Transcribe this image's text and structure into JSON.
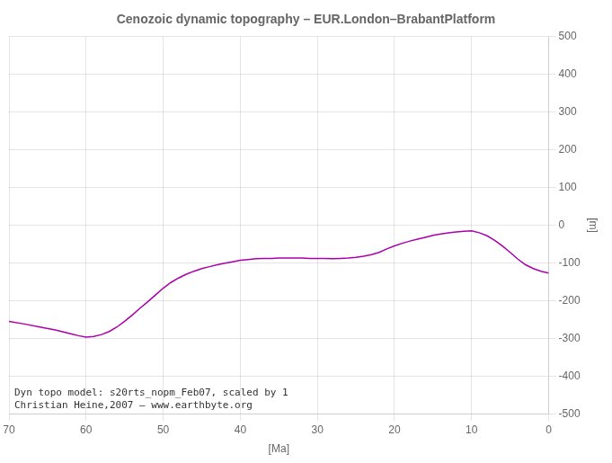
{
  "chart_data": {
    "type": "line",
    "title": "Cenozoic dynamic topography – EUR.London–BrabantPlatform",
    "xlabel": "[Ma]",
    "ylabel": "[m]",
    "annotations": [
      "Dyn topo model: s20rts_nopm_Feb07, scaled by 1",
      "Christian Heine,2007 – www.earthbyte.org"
    ],
    "x": [
      70,
      68,
      66,
      64,
      62,
      61,
      60,
      59,
      58,
      57,
      56,
      55,
      54,
      53,
      52,
      51,
      50,
      49,
      48,
      47,
      46,
      45,
      44,
      43,
      42,
      41,
      40,
      39,
      38,
      37,
      36,
      35,
      34,
      33,
      32,
      31,
      30,
      29,
      28,
      27,
      26,
      25,
      24,
      23,
      22,
      21,
      20,
      19,
      18,
      17,
      16,
      15,
      14,
      13,
      12,
      11,
      10,
      9,
      8,
      7,
      6,
      5,
      4,
      3,
      2,
      1,
      0
    ],
    "values": [
      -255,
      -262,
      -270,
      -278,
      -288,
      -293,
      -297,
      -295,
      -290,
      -282,
      -270,
      -255,
      -238,
      -220,
      -203,
      -185,
      -167,
      -152,
      -140,
      -130,
      -122,
      -115,
      -110,
      -105,
      -101,
      -97,
      -93,
      -91,
      -89,
      -88,
      -88,
      -87,
      -87,
      -87,
      -87,
      -88,
      -88,
      -88,
      -89,
      -88,
      -87,
      -85,
      -82,
      -78,
      -72,
      -63,
      -55,
      -48,
      -42,
      -37,
      -32,
      -27,
      -23,
      -20,
      -18,
      -16,
      -15,
      -20,
      -28,
      -40,
      -55,
      -72,
      -90,
      -105,
      -115,
      -122,
      -127
    ],
    "color": "#aa00aa",
    "xlim": [
      70,
      0
    ],
    "ylim": [
      -500,
      500
    ],
    "xticks": [
      70,
      60,
      50,
      40,
      30,
      20,
      10,
      0
    ],
    "yticks": [
      -500,
      -400,
      -300,
      -200,
      -100,
      0,
      100,
      200,
      300,
      400,
      500
    ],
    "grid": true
  }
}
